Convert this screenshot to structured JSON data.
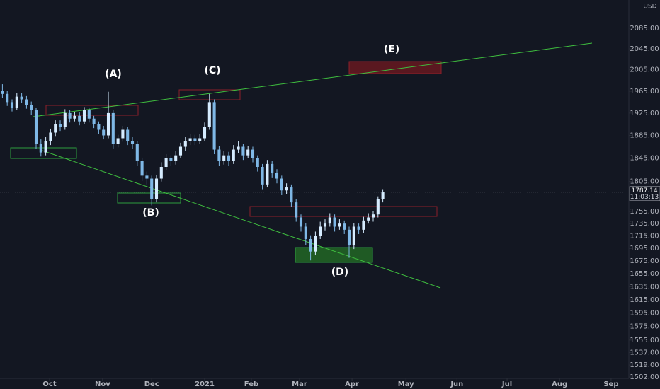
{
  "chart_data": {
    "type": "candlestick",
    "currency": "USD",
    "log_scale": true,
    "up_color": "#d6ecff",
    "down_color": "#7fb8e6",
    "annotations": [
      "(A)",
      "(B)",
      "(C)",
      "(D)",
      "(E)"
    ],
    "last_price": 1787.14,
    "countdown": "11:03:13",
    "xlim": [
      -0.5,
      130
    ],
    "xticks": [
      {
        "value": 9.8,
        "label": "Oct"
      },
      {
        "value": 20.8,
        "label": "Nov"
      },
      {
        "value": 31,
        "label": "Dec"
      },
      {
        "value": 42,
        "label": "2021"
      },
      {
        "value": 51.7,
        "label": "Feb"
      },
      {
        "value": 61.7,
        "label": "Mar"
      },
      {
        "value": 72.6,
        "label": "Apr"
      },
      {
        "value": 83.8,
        "label": "May"
      },
      {
        "value": 94.4,
        "label": "Jun"
      },
      {
        "value": 104.8,
        "label": "Jul"
      },
      {
        "value": 115.7,
        "label": "Aug"
      },
      {
        "value": 126.4,
        "label": "Sep"
      }
    ],
    "ylim": [
      1500,
      2141
    ],
    "yticks": [
      {
        "value": 2085,
        "label": "2085.00"
      },
      {
        "value": 2045,
        "label": "2045.00"
      },
      {
        "value": 2005,
        "label": "2005.00"
      },
      {
        "value": 1965,
        "label": "1965.00"
      },
      {
        "value": 1925,
        "label": "1925.00"
      },
      {
        "value": 1885,
        "label": "1885.00"
      },
      {
        "value": 1845,
        "label": "1845.00"
      },
      {
        "value": 1805,
        "label": "1805.00"
      },
      {
        "value": 1755,
        "label": "1755.00"
      },
      {
        "value": 1735,
        "label": "1735.00"
      },
      {
        "value": 1715,
        "label": "1715.00"
      },
      {
        "value": 1695,
        "label": "1695.00"
      },
      {
        "value": 1675,
        "label": "1675.00"
      },
      {
        "value": 1655,
        "label": "1655.00"
      },
      {
        "value": 1635,
        "label": "1635.00"
      },
      {
        "value": 1615,
        "label": "1615.00"
      },
      {
        "value": 1595,
        "label": "1595.00"
      },
      {
        "value": 1575,
        "label": "1575.00"
      },
      {
        "value": 1555,
        "label": "1555.00"
      },
      {
        "value": 1537,
        "label": "1537.00"
      },
      {
        "value": 1519,
        "label": "1519.00"
      },
      {
        "value": 1502,
        "label": "1502.00"
      }
    ],
    "ohlc": [
      [
        1965,
        1978,
        1952,
        1960
      ],
      [
        1960,
        1966,
        1938,
        1945
      ],
      [
        1945,
        1950,
        1928,
        1935
      ],
      [
        1935,
        1962,
        1930,
        1955
      ],
      [
        1955,
        1962,
        1943,
        1950
      ],
      [
        1950,
        1956,
        1933,
        1940
      ],
      [
        1940,
        1946,
        1922,
        1930
      ],
      [
        1930,
        1935,
        1862,
        1870
      ],
      [
        1870,
        1878,
        1848,
        1855
      ],
      [
        1855,
        1882,
        1850,
        1875
      ],
      [
        1875,
        1897,
        1868,
        1890
      ],
      [
        1890,
        1912,
        1884,
        1905
      ],
      [
        1905,
        1912,
        1893,
        1900
      ],
      [
        1900,
        1932,
        1895,
        1925
      ],
      [
        1925,
        1930,
        1908,
        1915
      ],
      [
        1915,
        1927,
        1910,
        1920
      ],
      [
        1920,
        1926,
        1903,
        1910
      ],
      [
        1910,
        1936,
        1905,
        1930
      ],
      [
        1930,
        1935,
        1908,
        1915
      ],
      [
        1915,
        1920,
        1898,
        1905
      ],
      [
        1905,
        1910,
        1888,
        1895
      ],
      [
        1895,
        1902,
        1878,
        1885
      ],
      [
        1885,
        1964,
        1880,
        1925
      ],
      [
        1925,
        1930,
        1862,
        1870
      ],
      [
        1870,
        1886,
        1864,
        1880
      ],
      [
        1880,
        1902,
        1874,
        1895
      ],
      [
        1895,
        1900,
        1868,
        1875
      ],
      [
        1875,
        1882,
        1862,
        1870
      ],
      [
        1870,
        1875,
        1832,
        1840
      ],
      [
        1840,
        1846,
        1806,
        1815
      ],
      [
        1815,
        1822,
        1800,
        1810
      ],
      [
        1810,
        1815,
        1765,
        1775
      ],
      [
        1775,
        1816,
        1770,
        1810
      ],
      [
        1810,
        1838,
        1805,
        1830
      ],
      [
        1830,
        1852,
        1824,
        1845
      ],
      [
        1845,
        1850,
        1832,
        1840
      ],
      [
        1840,
        1858,
        1834,
        1850
      ],
      [
        1850,
        1872,
        1845,
        1865
      ],
      [
        1865,
        1882,
        1858,
        1875
      ],
      [
        1875,
        1888,
        1868,
        1880
      ],
      [
        1880,
        1886,
        1868,
        1875
      ],
      [
        1875,
        1888,
        1870,
        1880
      ],
      [
        1880,
        1908,
        1875,
        1900
      ],
      [
        1900,
        1960,
        1895,
        1945
      ],
      [
        1945,
        1950,
        1852,
        1860
      ],
      [
        1860,
        1866,
        1832,
        1840
      ],
      [
        1840,
        1858,
        1834,
        1850
      ],
      [
        1850,
        1856,
        1832,
        1840
      ],
      [
        1840,
        1868,
        1835,
        1860
      ],
      [
        1860,
        1875,
        1854,
        1865
      ],
      [
        1865,
        1870,
        1842,
        1850
      ],
      [
        1850,
        1866,
        1845,
        1860
      ],
      [
        1860,
        1865,
        1838,
        1845
      ],
      [
        1845,
        1850,
        1822,
        1830
      ],
      [
        1830,
        1835,
        1792,
        1800
      ],
      [
        1800,
        1842,
        1795,
        1835
      ],
      [
        1835,
        1840,
        1812,
        1820
      ],
      [
        1820,
        1826,
        1802,
        1810
      ],
      [
        1810,
        1815,
        1782,
        1790
      ],
      [
        1790,
        1802,
        1784,
        1795
      ],
      [
        1795,
        1800,
        1762,
        1770
      ],
      [
        1770,
        1776,
        1738,
        1745
      ],
      [
        1745,
        1750,
        1722,
        1730
      ],
      [
        1730,
        1736,
        1700,
        1710
      ],
      [
        1710,
        1716,
        1676,
        1690
      ],
      [
        1690,
        1722,
        1684,
        1715
      ],
      [
        1715,
        1738,
        1710,
        1730
      ],
      [
        1730,
        1742,
        1724,
        1735
      ],
      [
        1735,
        1752,
        1730,
        1745
      ],
      [
        1745,
        1750,
        1722,
        1730
      ],
      [
        1730,
        1742,
        1725,
        1735
      ],
      [
        1735,
        1740,
        1718,
        1725
      ],
      [
        1725,
        1730,
        1680,
        1700
      ],
      [
        1700,
        1736,
        1694,
        1730
      ],
      [
        1730,
        1735,
        1718,
        1725
      ],
      [
        1725,
        1746,
        1720,
        1740
      ],
      [
        1740,
        1752,
        1735,
        1745
      ],
      [
        1745,
        1756,
        1738,
        1750
      ],
      [
        1750,
        1780,
        1745,
        1775
      ],
      [
        1775,
        1792,
        1770,
        1787.14
      ]
    ]
  }
}
